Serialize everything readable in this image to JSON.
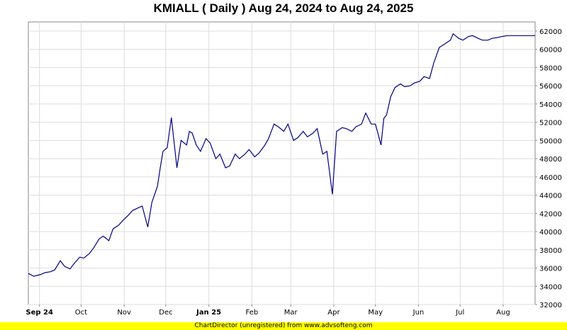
{
  "chart_data": {
    "type": "line",
    "title": "KMIALL ( Daily ) Aug 24, 2024 to Aug 24, 2025",
    "xlabel": "",
    "ylabel": "",
    "ylim": [
      32000,
      63000
    ],
    "y_ticks": [
      "34000",
      "36000",
      "38000",
      "40000",
      "42000",
      "44000",
      "46000",
      "48000",
      "50000",
      "52000",
      "54000",
      "56000",
      "58000",
      "60000",
      "62000",
      "32000"
    ],
    "y_tick_values": [
      34000,
      36000,
      38000,
      40000,
      42000,
      44000,
      46000,
      48000,
      50000,
      52000,
      54000,
      56000,
      58000,
      60000,
      62000,
      32000
    ],
    "x_ticks": [
      "Sep 24",
      "Oct",
      "Nov",
      "Dec",
      "Jan 25",
      "Feb",
      "Mar",
      "Apr",
      "May",
      "Jun",
      "Jul",
      "Aug"
    ],
    "x_tick_dates": [
      "2024-09-01",
      "2024-10-01",
      "2024-11-01",
      "2024-12-01",
      "2025-01-01",
      "2025-02-01",
      "2025-03-01",
      "2025-04-01",
      "2025-05-01",
      "2025-06-01",
      "2025-07-01",
      "2025-08-01"
    ],
    "x_range": [
      "2024-08-24",
      "2025-08-24"
    ],
    "grid": true,
    "line_color": "#000080",
    "series": [
      {
        "name": "",
        "x": [
          "2024-08-24",
          "2024-08-28",
          "2024-09-02",
          "2024-09-05",
          "2024-09-09",
          "2024-09-12",
          "2024-09-16",
          "2024-09-19",
          "2024-09-23",
          "2024-09-26",
          "2024-09-30",
          "2024-10-03",
          "2024-10-07",
          "2024-10-10",
          "2024-10-14",
          "2024-10-17",
          "2024-10-21",
          "2024-10-24",
          "2024-10-28",
          "2024-10-31",
          "2024-11-04",
          "2024-11-07",
          "2024-11-11",
          "2024-11-14",
          "2024-11-18",
          "2024-11-21",
          "2024-11-25",
          "2024-11-27",
          "2024-11-29",
          "2024-12-02",
          "2024-12-05",
          "2024-12-09",
          "2024-12-12",
          "2024-12-16",
          "2024-12-18",
          "2024-12-20",
          "2024-12-23",
          "2024-12-26",
          "2024-12-30",
          "2025-01-02",
          "2025-01-06",
          "2025-01-09",
          "2025-01-13",
          "2025-01-16",
          "2025-01-20",
          "2025-01-23",
          "2025-01-27",
          "2025-01-30",
          "2025-02-03",
          "2025-02-06",
          "2025-02-10",
          "2025-02-13",
          "2025-02-17",
          "2025-02-20",
          "2025-02-24",
          "2025-02-27",
          "2025-03-03",
          "2025-03-06",
          "2025-03-10",
          "2025-03-13",
          "2025-03-17",
          "2025-03-20",
          "2025-03-24",
          "2025-03-27",
          "2025-03-31",
          "2025-04-03",
          "2025-04-07",
          "2025-04-10",
          "2025-04-14",
          "2025-04-17",
          "2025-04-21",
          "2025-04-24",
          "2025-04-28",
          "2025-05-01",
          "2025-05-05",
          "2025-05-07",
          "2025-05-09",
          "2025-05-12",
          "2025-05-15",
          "2025-05-19",
          "2025-05-22",
          "2025-05-26",
          "2025-05-29",
          "2025-06-02",
          "2025-06-05",
          "2025-06-09",
          "2025-06-12",
          "2025-06-16",
          "2025-06-19",
          "2025-06-23",
          "2025-06-24",
          "2025-06-26",
          "2025-06-30",
          "2025-07-03",
          "2025-07-07",
          "2025-07-10",
          "2025-07-14",
          "2025-07-17",
          "2025-07-21",
          "2025-07-24",
          "2025-07-28",
          "2025-07-31",
          "2025-08-04",
          "2025-08-07",
          "2025-08-11",
          "2025-08-14",
          "2025-08-18",
          "2025-08-21",
          "2025-08-24"
        ],
        "values": [
          35400,
          35100,
          35300,
          35500,
          35600,
          35800,
          36800,
          36200,
          35900,
          36500,
          37200,
          37100,
          37600,
          38200,
          39200,
          39500,
          39000,
          40300,
          40700,
          41200,
          41800,
          42300,
          42600,
          42800,
          40500,
          43200,
          45000,
          47000,
          48800,
          49200,
          52500,
          47000,
          50000,
          49500,
          51000,
          50800,
          49500,
          48800,
          50200,
          49700,
          48000,
          48500,
          47000,
          47200,
          48500,
          48000,
          48500,
          49000,
          48200,
          48600,
          49400,
          50200,
          51800,
          51500,
          51000,
          51800,
          50000,
          50300,
          51000,
          50400,
          50800,
          51300,
          48500,
          48800,
          44100,
          51000,
          51400,
          51300,
          51000,
          51500,
          51800,
          53000,
          51800,
          51800,
          49500,
          52400,
          52800,
          54800,
          55800,
          56200,
          55900,
          56000,
          56300,
          56500,
          57000,
          56800,
          58500,
          60200,
          60500,
          60900,
          61000,
          61700,
          61200,
          61000,
          61400,
          61500,
          61200,
          61000,
          61000,
          61200,
          61300,
          61400,
          61500,
          61500,
          61500,
          61500,
          61500,
          61500,
          61500
        ]
      }
    ]
  },
  "footer": "ChartDirector (unregistered) from www.advsofteng.com"
}
